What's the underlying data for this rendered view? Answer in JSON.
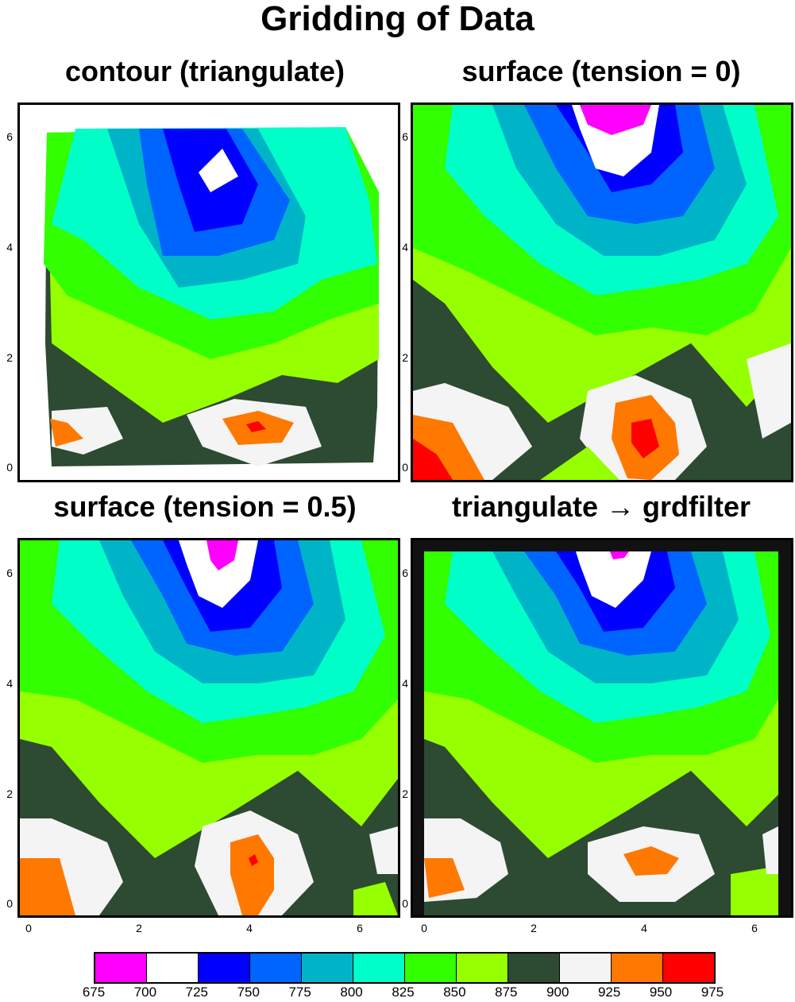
{
  "title": "Gridding of Data",
  "colors": {
    "c675": "#ff00ff",
    "c700": "#ffffff",
    "c725": "#0000ff",
    "c750": "#0064ff",
    "c775": "#00b4c8",
    "c800": "#00ffc8",
    "c825": "#32ff00",
    "c850": "#96ff00",
    "c875": "#2d4a32",
    "c900": "#f4f4f4",
    "c925": "#ff7800",
    "c950": "#ff0000"
  },
  "chart_data": [
    {
      "type": "heatmap",
      "title": "contour (triangulate)",
      "xlim": [
        -0.2,
        6.6
      ],
      "ylim": [
        -0.2,
        6.6
      ],
      "xticks": [
        "0",
        "2",
        "4",
        "6"
      ],
      "yticks": [
        "0",
        "2",
        "4",
        "6"
      ],
      "grid": false
    },
    {
      "type": "heatmap",
      "title": "surface (tension = 0)",
      "xlim": [
        -0.2,
        6.6
      ],
      "ylim": [
        -0.2,
        6.6
      ],
      "xticks": [
        "0",
        "2",
        "4",
        "6"
      ],
      "yticks": [
        "0",
        "2",
        "4",
        "6"
      ],
      "grid": false
    },
    {
      "type": "heatmap",
      "title": "surface (tension = 0.5)",
      "xlim": [
        -0.2,
        6.6
      ],
      "ylim": [
        -0.2,
        6.6
      ],
      "xticks": [
        "0",
        "2",
        "4",
        "6"
      ],
      "yticks": [
        "0",
        "2",
        "4",
        "6"
      ],
      "grid": false
    },
    {
      "type": "heatmap",
      "title": "triangulate → grdfilter",
      "xlim": [
        -0.2,
        6.6
      ],
      "ylim": [
        -0.2,
        6.6
      ],
      "xticks": [
        "0",
        "2",
        "4",
        "6"
      ],
      "yticks": [
        "0",
        "2",
        "4",
        "6"
      ],
      "grid": false
    }
  ],
  "colorbar": {
    "labels": [
      "675",
      "700",
      "725",
      "750",
      "775",
      "800",
      "825",
      "850",
      "875",
      "900",
      "925",
      "950",
      "975"
    ]
  }
}
